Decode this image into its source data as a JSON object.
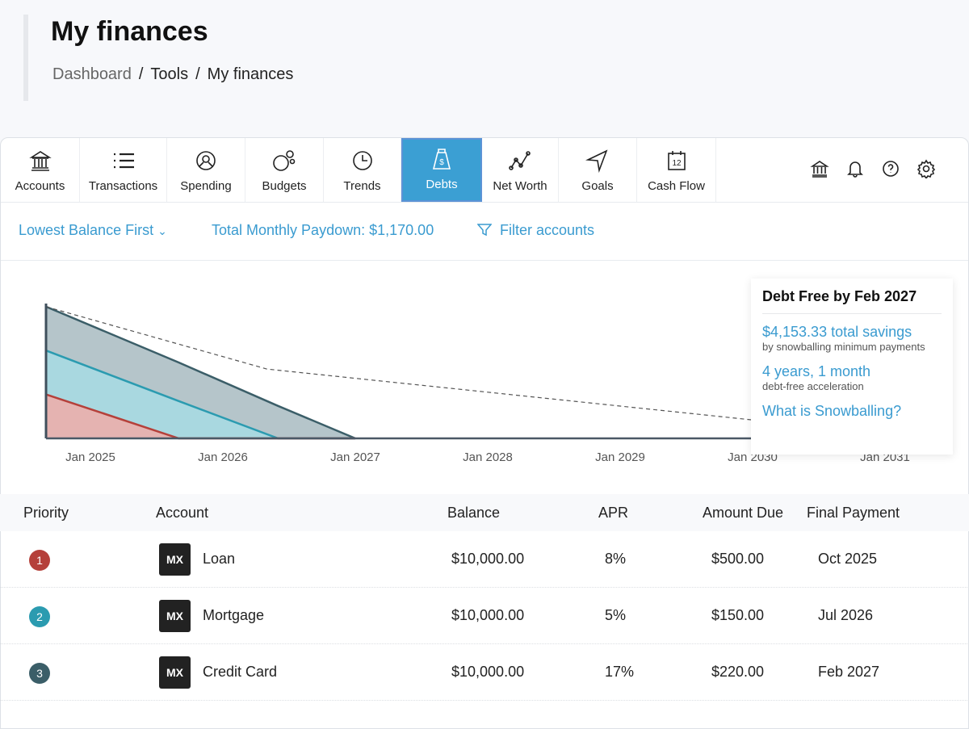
{
  "header": {
    "title": "My finances",
    "breadcrumb": [
      "Dashboard",
      "Tools",
      "My finances"
    ]
  },
  "nav": {
    "tabs": [
      {
        "label": "Accounts",
        "icon": "bank-icon"
      },
      {
        "label": "Transactions",
        "icon": "list-icon"
      },
      {
        "label": "Spending",
        "icon": "steering-wheel-icon"
      },
      {
        "label": "Budgets",
        "icon": "bubbles-icon"
      },
      {
        "label": "Trends",
        "icon": "clock-icon"
      },
      {
        "label": "Debts",
        "icon": "money-bag-icon",
        "active": true
      },
      {
        "label": "Net Worth",
        "icon": "line-chart-icon"
      },
      {
        "label": "Goals",
        "icon": "navigation-arrow-icon"
      },
      {
        "label": "Cash Flow",
        "icon": "calendar-icon",
        "calendar_day": "12"
      }
    ],
    "tools": [
      "bank-icon",
      "bell-icon",
      "help-icon",
      "gear-icon"
    ]
  },
  "filters": {
    "strategy": "Lowest Balance First",
    "paydown_label": "Total Monthly Paydown:",
    "paydown_value": "$1,170.00",
    "filter_label": "Filter accounts"
  },
  "colors": {
    "accent": "#3a9bd0",
    "loan": "#b5403a",
    "mortgage": "#2b9bb0",
    "credit_card": "#3b5e68"
  },
  "summary": {
    "title": "Debt Free by Feb 2027",
    "savings": "$4,153.33 total savings",
    "savings_note": "by snowballing minimum payments",
    "acceleration": "4 years, 1 month",
    "acceleration_note": "debt-free acceleration",
    "link": "What is Snowballing?"
  },
  "chart_data": {
    "type": "area",
    "stacked": true,
    "x_ticks": [
      "Jan 2025",
      "Jan 2026",
      "Jan 2027",
      "Jan 2028",
      "Jan 2029",
      "Jan 2030",
      "Jan 2031"
    ],
    "x": [
      "2024-09",
      "2025-09",
      "2026-06",
      "2027-01"
    ],
    "series": [
      {
        "name": "Loan",
        "values": [
          10000,
          0,
          0,
          0
        ],
        "color": "#e5b3b1",
        "line": "#b5403a"
      },
      {
        "name": "Mortgage",
        "values": [
          10000,
          8500,
          0,
          0
        ],
        "color": "#a9d8e0",
        "line": "#2b9bb0"
      },
      {
        "name": "Credit Card",
        "values": [
          10000,
          8800,
          7400,
          0
        ],
        "color": "#b5c5ca",
        "line": "#3b5e68"
      }
    ],
    "minimum_payments_line": {
      "x": [
        "2024-09",
        "2026-05",
        "2030-01",
        "2030-06"
      ],
      "values": [
        30000,
        15800,
        4200,
        3600
      ]
    },
    "ylim": [
      0,
      30000
    ],
    "grid": false
  },
  "table": {
    "headers": [
      "Priority",
      "Account",
      "Balance",
      "APR",
      "Amount Due",
      "Final Payment"
    ],
    "rows": [
      {
        "priority": "1",
        "color": "#b5403a",
        "logo": "MX",
        "account": "Loan",
        "balance": "$10,000.00",
        "apr": "8%",
        "due": "$500.00",
        "final": "Oct 2025"
      },
      {
        "priority": "2",
        "color": "#2b9bb0",
        "logo": "MX",
        "account": "Mortgage",
        "balance": "$10,000.00",
        "apr": "5%",
        "due": "$150.00",
        "final": "Jul 2026"
      },
      {
        "priority": "3",
        "color": "#3b5e68",
        "logo": "MX",
        "account": "Credit Card",
        "balance": "$10,000.00",
        "apr": "17%",
        "due": "$220.00",
        "final": "Feb 2027"
      }
    ]
  }
}
